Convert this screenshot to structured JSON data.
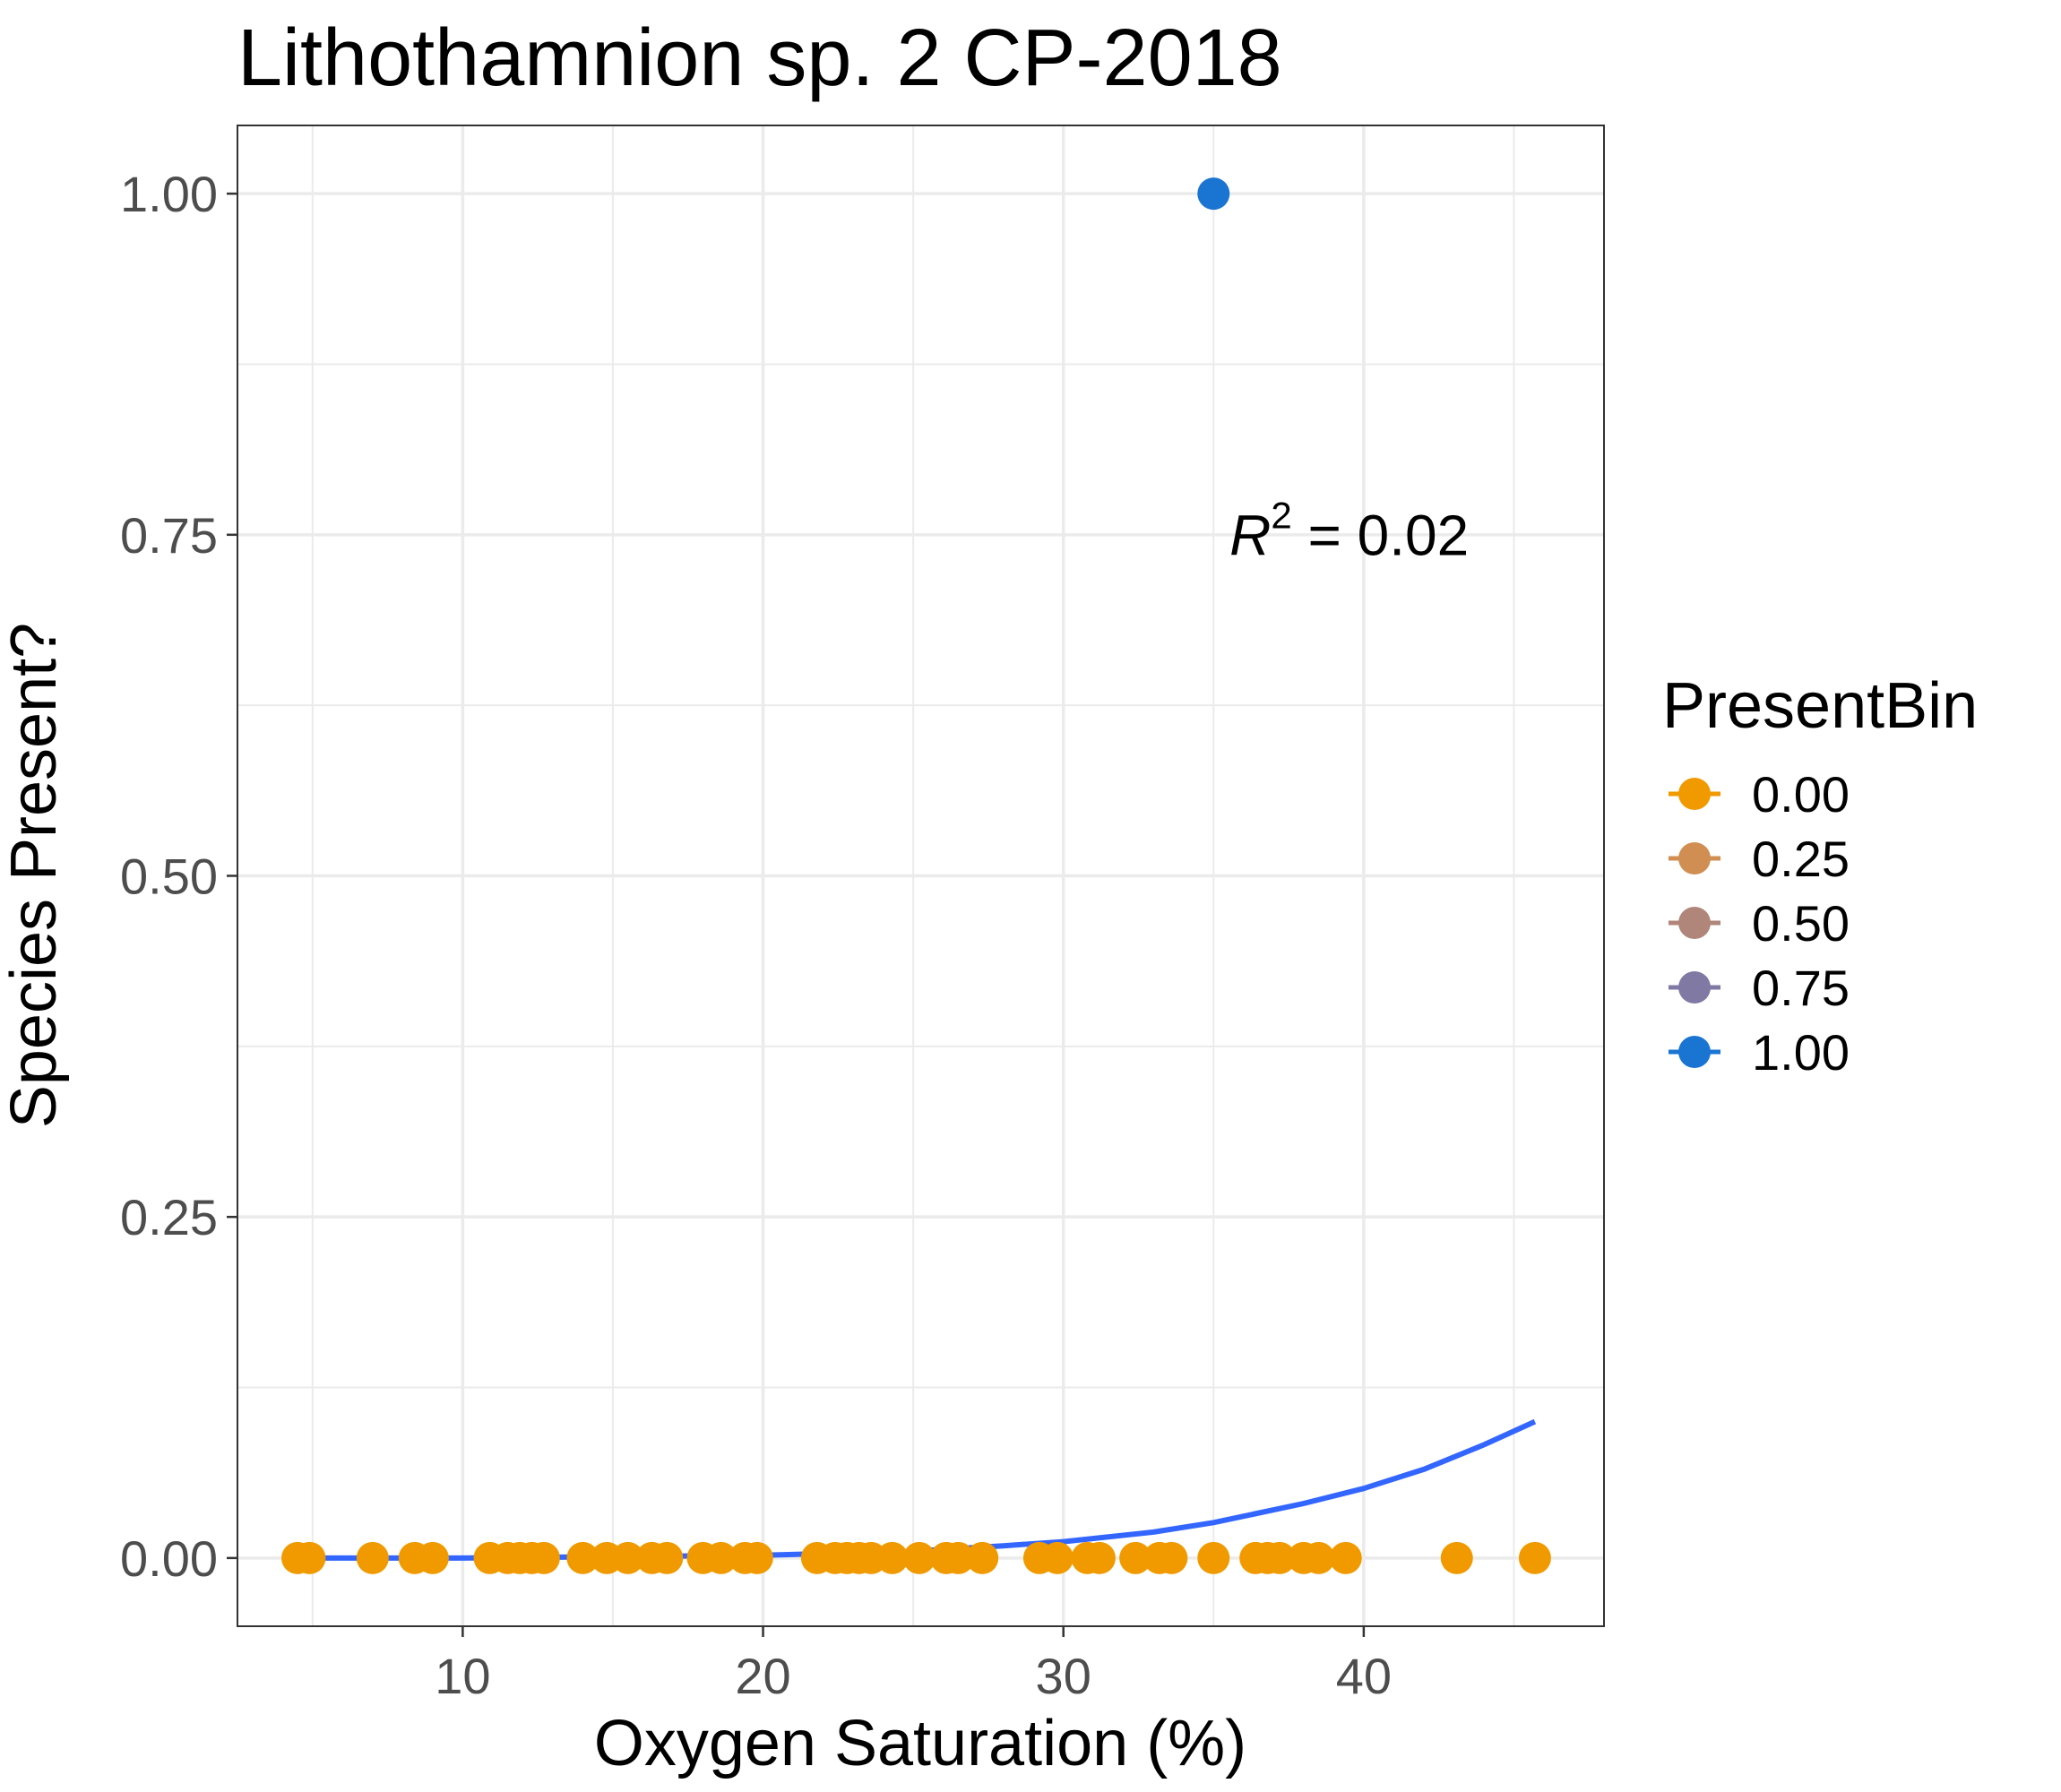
{
  "chart_data": {
    "type": "scatter",
    "title": "Lithothamnion sp. 2 CP-2018",
    "xlabel": "Oxygen Saturation (%)",
    "ylabel": "Species Present?",
    "xlim": [
      2.5,
      48
    ],
    "ylim": [
      -0.05,
      1.05
    ],
    "x_ticks": [
      10,
      20,
      30,
      40
    ],
    "x_tick_labels": [
      "10",
      "20",
      "30",
      "40"
    ],
    "y_ticks": [
      0,
      0.25,
      0.5,
      0.75,
      1.0
    ],
    "y_tick_labels": [
      "0.00",
      "0.25",
      "0.50",
      "0.75",
      "1.00"
    ],
    "grid": true,
    "legend": {
      "title": "PresentBin",
      "position": "right",
      "entries": [
        {
          "label": "0.00",
          "color": "#F09A00"
        },
        {
          "label": "0.25",
          "color": "#D08E52"
        },
        {
          "label": "0.50",
          "color": "#B0857A"
        },
        {
          "label": "0.75",
          "color": "#7F79A4"
        },
        {
          "label": "1.00",
          "color": "#1A75D2"
        }
      ]
    },
    "series": [
      {
        "presentbin": 0,
        "color": "#F09A00",
        "points": [
          [
            4.5,
            0
          ],
          [
            4.9,
            0
          ],
          [
            7.0,
            0
          ],
          [
            8.4,
            0
          ],
          [
            9.0,
            0
          ],
          [
            10.9,
            0
          ],
          [
            11.5,
            0
          ],
          [
            11.9,
            0
          ],
          [
            12.3,
            0
          ],
          [
            12.7,
            0
          ],
          [
            14.0,
            0
          ],
          [
            14.8,
            0
          ],
          [
            15.5,
            0
          ],
          [
            16.3,
            0
          ],
          [
            16.8,
            0
          ],
          [
            18.0,
            0
          ],
          [
            18.6,
            0
          ],
          [
            19.4,
            0
          ],
          [
            19.8,
            0
          ],
          [
            21.8,
            0
          ],
          [
            22.4,
            0
          ],
          [
            22.8,
            0
          ],
          [
            23.2,
            0
          ],
          [
            23.6,
            0
          ],
          [
            24.3,
            0
          ],
          [
            25.2,
            0
          ],
          [
            26.1,
            0
          ],
          [
            26.5,
            0
          ],
          [
            27.3,
            0
          ],
          [
            29.2,
            0
          ],
          [
            29.8,
            0
          ],
          [
            30.8,
            0
          ],
          [
            31.2,
            0
          ],
          [
            32.4,
            0
          ],
          [
            33.2,
            0
          ],
          [
            33.6,
            0
          ],
          [
            35.0,
            0
          ],
          [
            36.4,
            0
          ],
          [
            36.8,
            0
          ],
          [
            37.2,
            0
          ],
          [
            38.0,
            0
          ],
          [
            38.5,
            0
          ],
          [
            39.4,
            0
          ],
          [
            43.1,
            0
          ],
          [
            45.7,
            0
          ]
        ]
      },
      {
        "presentbin": 1,
        "color": "#1A75D2",
        "points": [
          [
            35.0,
            1
          ]
        ]
      }
    ],
    "fit_line": {
      "color": "#3366FF",
      "x": [
        4.5,
        10,
        15,
        20,
        25,
        28,
        30,
        33,
        35,
        38,
        40,
        42,
        44,
        45.7
      ],
      "y": [
        0.0,
        0.0,
        0.001,
        0.002,
        0.005,
        0.009,
        0.012,
        0.019,
        0.026,
        0.04,
        0.051,
        0.065,
        0.083,
        0.1
      ]
    },
    "annotation": {
      "text_base": "R",
      "text_sup": "2",
      "text_rest": " = 0.02",
      "x": 43.5,
      "y": 0.735
    }
  }
}
